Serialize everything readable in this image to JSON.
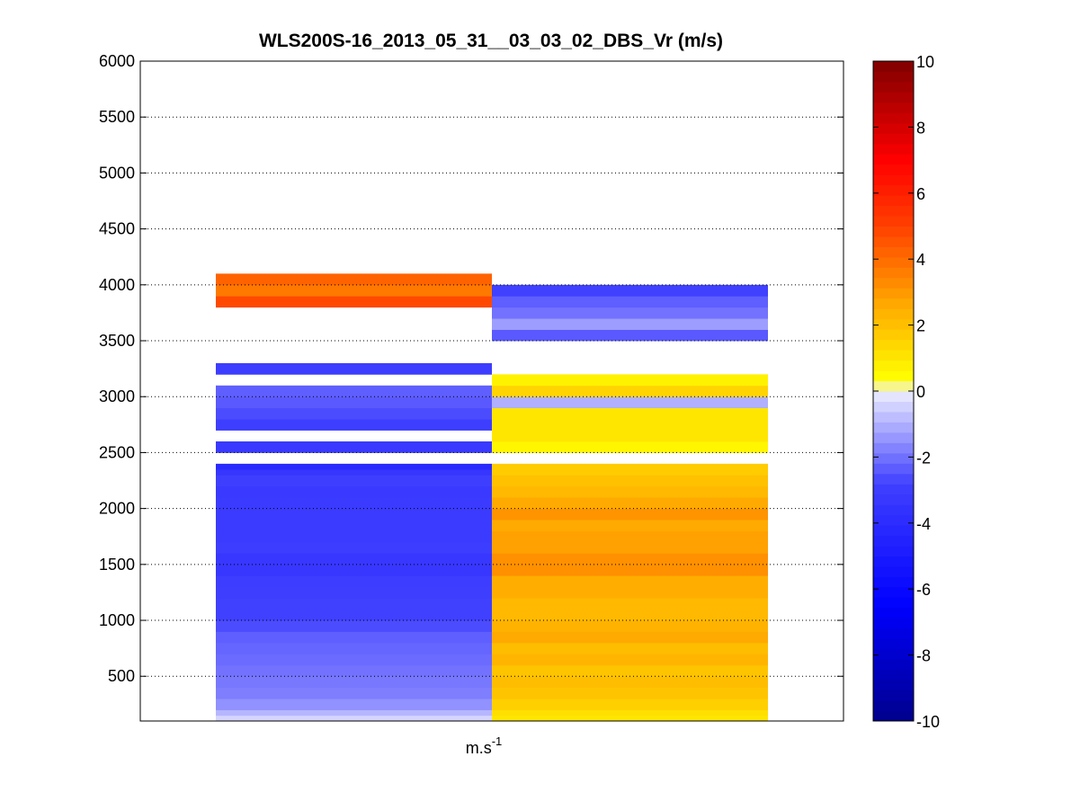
{
  "chart_data": {
    "type": "heatmap",
    "title": "WLS200S-16_2013_05_31__03_03_02_DBS_Vr (m/s)",
    "xlabel_base": "m.s",
    "xlabel_sup": "-1",
    "ylabel": "",
    "ylim": [
      100,
      6000
    ],
    "yticks": [
      500,
      1000,
      1500,
      2000,
      2500,
      3000,
      3500,
      4000,
      4500,
      5000,
      5500,
      6000
    ],
    "grid": "horizontal dotted",
    "colorbar": {
      "clim": [
        -10,
        10
      ],
      "ticks": [
        -10,
        -8,
        -6,
        -4,
        -2,
        0,
        2,
        4,
        6,
        8,
        10
      ],
      "colormap": "blue-white-yellow-red"
    },
    "bin_height_m": 50,
    "columns": [
      {
        "segments": [
          {
            "from": 100,
            "to": 150,
            "value": -0.4
          },
          {
            "from": 150,
            "to": 200,
            "value": -0.9
          },
          {
            "from": 200,
            "to": 300,
            "value": -1.5
          },
          {
            "from": 300,
            "to": 400,
            "value": -1.8
          },
          {
            "from": 400,
            "to": 500,
            "value": -1.9
          },
          {
            "from": 500,
            "to": 600,
            "value": -2.0
          },
          {
            "from": 600,
            "to": 700,
            "value": -2.1
          },
          {
            "from": 700,
            "to": 800,
            "value": -2.2
          },
          {
            "from": 800,
            "to": 900,
            "value": -2.3
          },
          {
            "from": 900,
            "to": 1000,
            "value": -2.6
          },
          {
            "from": 1000,
            "to": 1200,
            "value": -2.8
          },
          {
            "from": 1200,
            "to": 1300,
            "value": -2.9
          },
          {
            "from": 1300,
            "to": 1400,
            "value": -3.0
          },
          {
            "from": 1400,
            "to": 1600,
            "value": -3.3
          },
          {
            "from": 1600,
            "to": 1700,
            "value": -3.0
          },
          {
            "from": 1700,
            "to": 2100,
            "value": -3.1
          },
          {
            "from": 2100,
            "to": 2200,
            "value": -3.2
          },
          {
            "from": 2200,
            "to": 2300,
            "value": -2.9
          },
          {
            "from": 2300,
            "to": 2350,
            "value": -3.4
          },
          {
            "from": 2350,
            "to": 2400,
            "value": -4.1
          },
          {
            "from": 2500,
            "to": 2600,
            "value": -3.2
          },
          {
            "from": 2700,
            "to": 2800,
            "value": -2.9
          },
          {
            "from": 2800,
            "to": 2900,
            "value": -2.6
          },
          {
            "from": 2900,
            "to": 3000,
            "value": -2.4
          },
          {
            "from": 3000,
            "to": 3100,
            "value": -2.3
          },
          {
            "from": 3200,
            "to": 3300,
            "value": -3.0
          },
          {
            "from": 3800,
            "to": 3900,
            "value": 4.8
          },
          {
            "from": 3900,
            "to": 4000,
            "value": 3.7
          },
          {
            "from": 4000,
            "to": 4100,
            "value": 4.2
          }
        ]
      },
      {
        "segments": [
          {
            "from": 100,
            "to": 150,
            "value": 1.0
          },
          {
            "from": 150,
            "to": 200,
            "value": 1.2
          },
          {
            "from": 200,
            "to": 300,
            "value": 1.6
          },
          {
            "from": 300,
            "to": 400,
            "value": 1.9
          },
          {
            "from": 400,
            "to": 500,
            "value": 2.1
          },
          {
            "from": 500,
            "to": 600,
            "value": 1.9
          },
          {
            "from": 600,
            "to": 700,
            "value": 2.3
          },
          {
            "from": 700,
            "to": 800,
            "value": 2.1
          },
          {
            "from": 800,
            "to": 900,
            "value": 2.6
          },
          {
            "from": 900,
            "to": 1000,
            "value": 2.4
          },
          {
            "from": 1000,
            "to": 1200,
            "value": 2.2
          },
          {
            "from": 1200,
            "to": 1400,
            "value": 2.5
          },
          {
            "from": 1400,
            "to": 1600,
            "value": 3.2
          },
          {
            "from": 1600,
            "to": 1800,
            "value": 2.8
          },
          {
            "from": 1800,
            "to": 1900,
            "value": 2.6
          },
          {
            "from": 1900,
            "to": 2000,
            "value": 3.1
          },
          {
            "from": 2000,
            "to": 2100,
            "value": 2.6
          },
          {
            "from": 2100,
            "to": 2200,
            "value": 2.2
          },
          {
            "from": 2200,
            "to": 2300,
            "value": 2.0
          },
          {
            "from": 2300,
            "to": 2400,
            "value": 1.7
          },
          {
            "from": 2500,
            "to": 2600,
            "value": 0.6
          },
          {
            "from": 2600,
            "to": 2900,
            "value": 1.0
          },
          {
            "from": 2900,
            "to": 3000,
            "value": -1.0
          },
          {
            "from": 3000,
            "to": 3100,
            "value": 1.5
          },
          {
            "from": 3100,
            "to": 3200,
            "value": 0.7
          },
          {
            "from": 3500,
            "to": 3600,
            "value": -2.4
          },
          {
            "from": 3600,
            "to": 3700,
            "value": -1.3
          },
          {
            "from": 3700,
            "to": 3800,
            "value": -2.0
          },
          {
            "from": 3800,
            "to": 3900,
            "value": -2.3
          },
          {
            "from": 3900,
            "to": 4000,
            "value": -2.8
          }
        ]
      }
    ]
  }
}
